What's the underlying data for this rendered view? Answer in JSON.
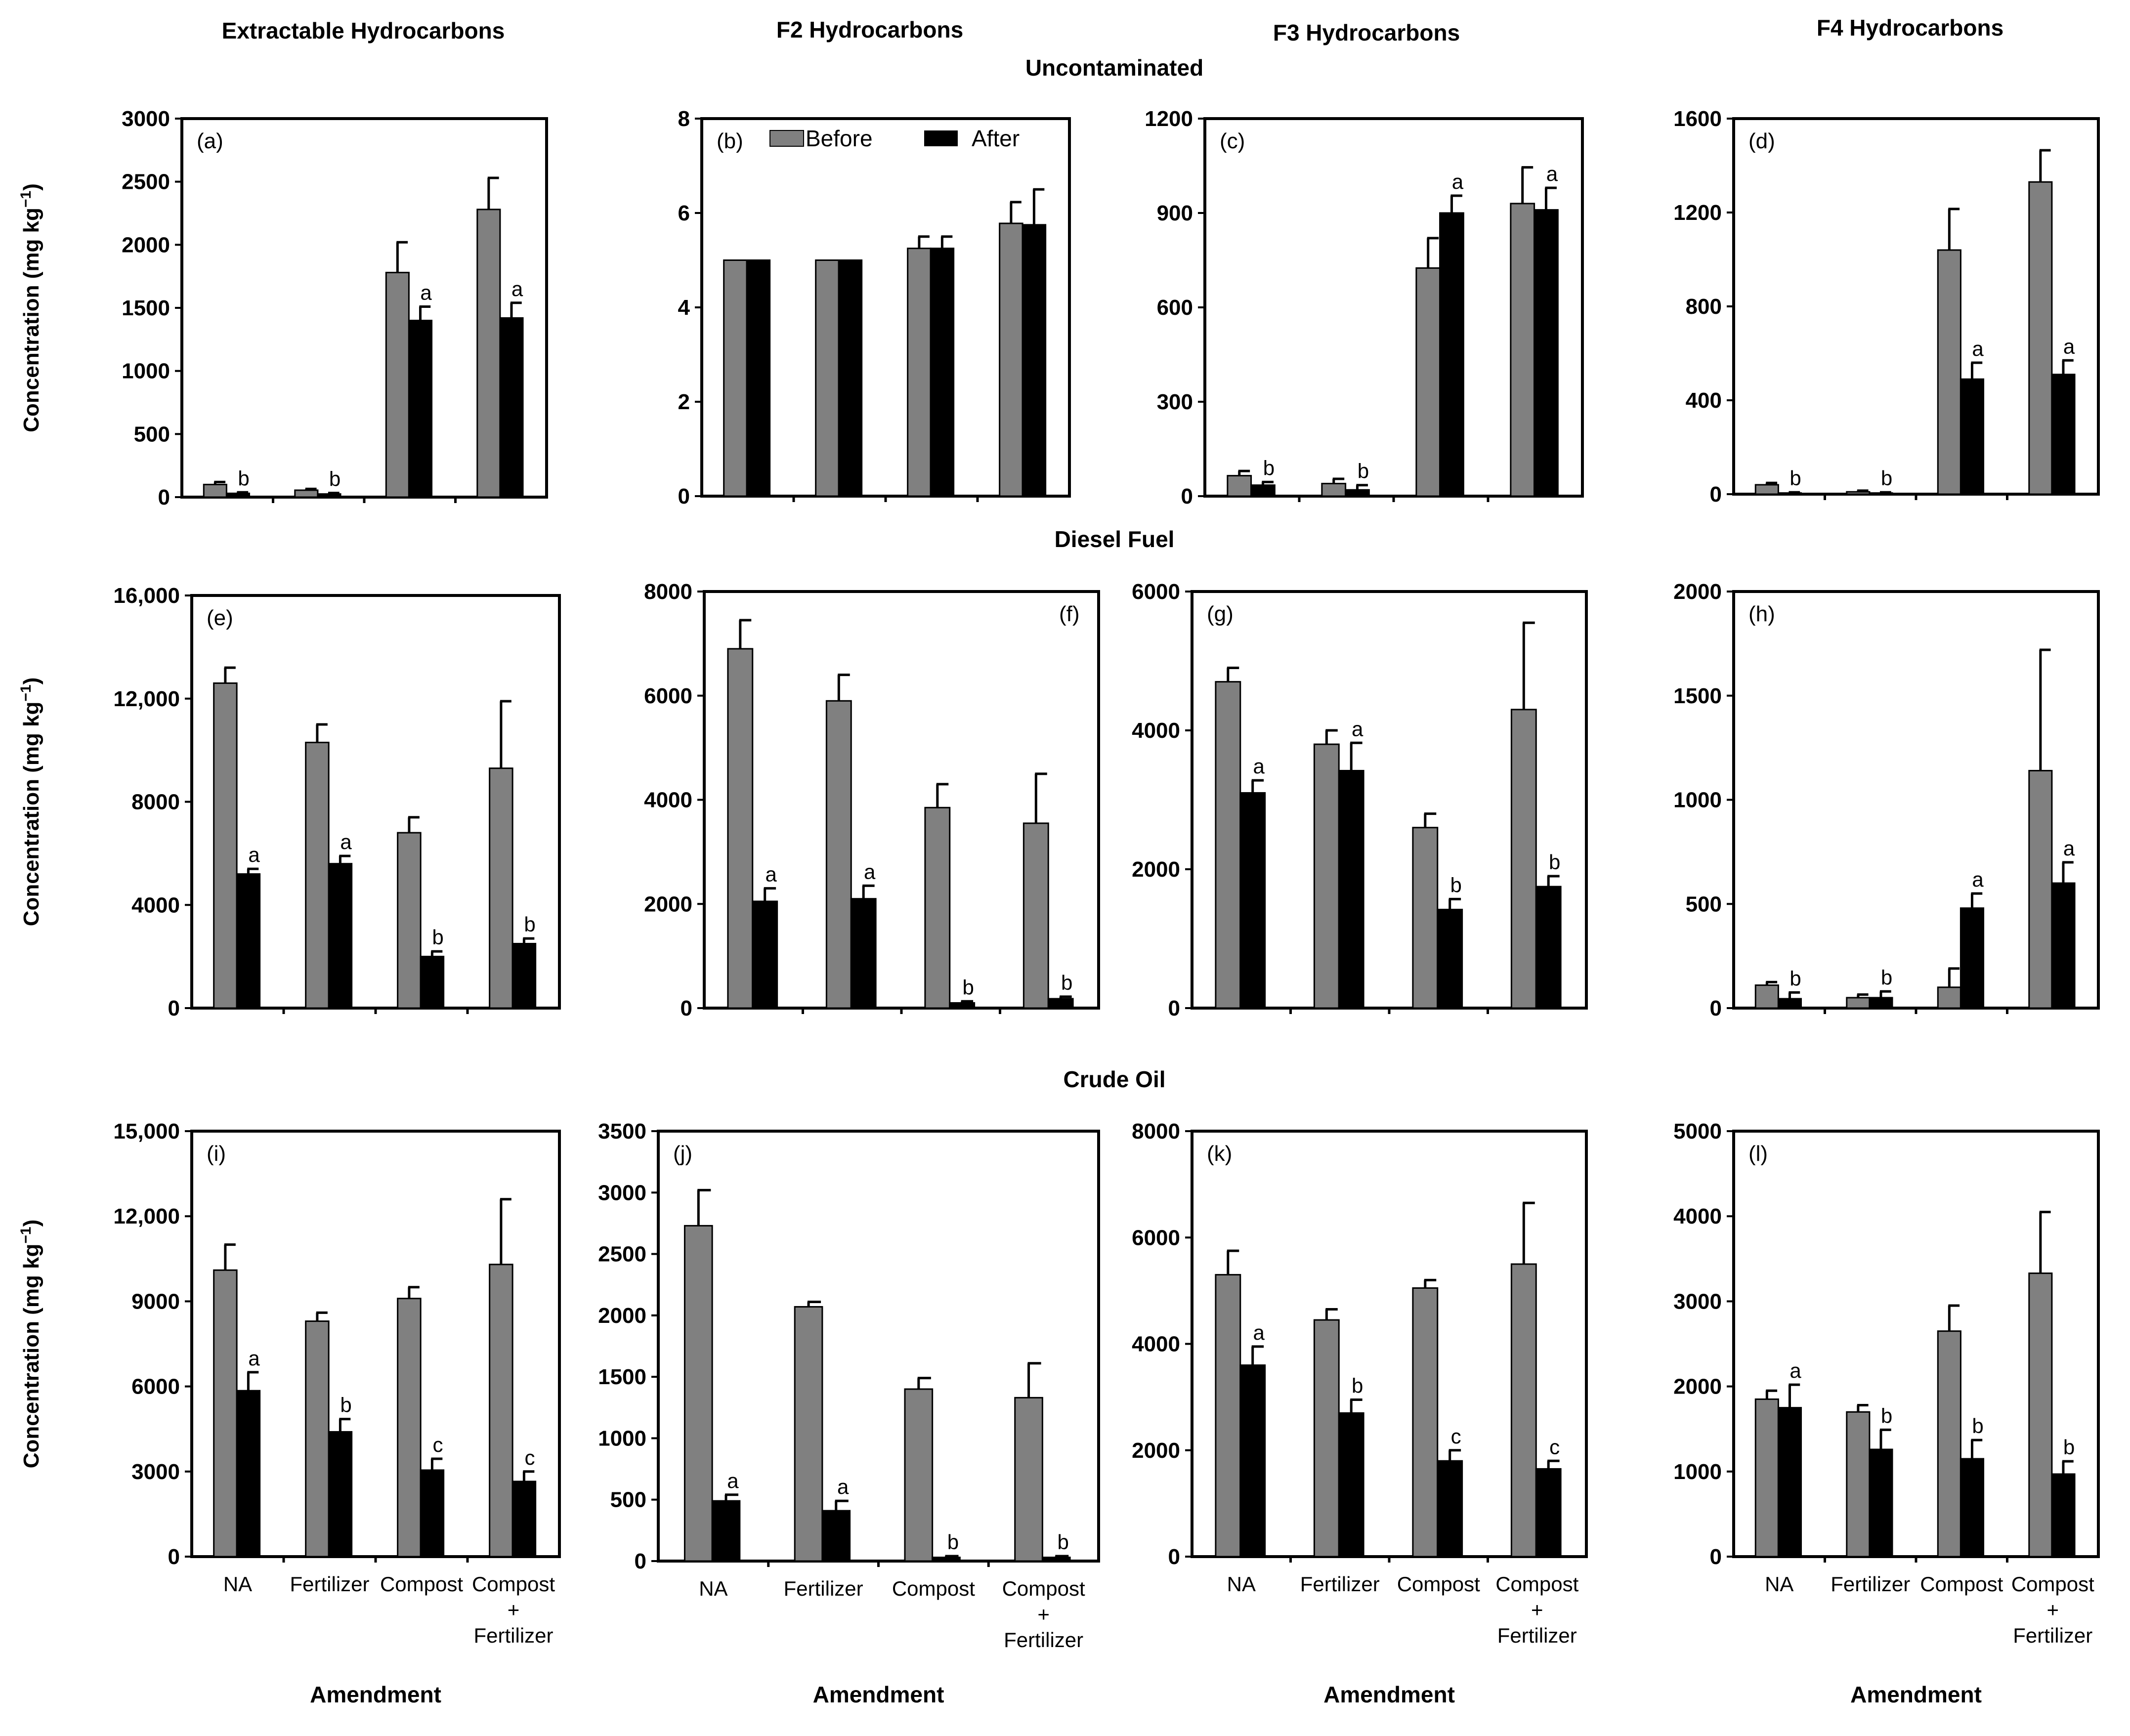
{
  "figure": {
    "column_titles": [
      "Extractable Hydrocarbons",
      "F2 Hydrocarbons",
      "F3 Hydrocarbons",
      "F4 Hydrocarbons"
    ],
    "row_titles": [
      "Uncontaminated",
      "Diesel Fuel",
      "Crude Oil"
    ],
    "ylabel": "Concentration (mg kg",
    "ylabel_sup": "−1",
    "ylabel_end": ")",
    "xlabel": "Amendment",
    "categories": [
      "NA",
      "Fertilizer",
      "Compost",
      "Compost + Fertilizer"
    ],
    "category_lines": [
      [
        "NA"
      ],
      [
        "Fertilizer"
      ],
      [
        "Compost"
      ],
      [
        "Compost",
        "+",
        "Fertilizer"
      ]
    ],
    "legend": [
      {
        "name": "Before",
        "color": "#808080"
      },
      {
        "name": "After",
        "color": "#000000"
      }
    ]
  },
  "chart_data": [
    {
      "type": "bar",
      "panel": "(a)",
      "row": "Uncontaminated",
      "column": "Extractable Hydrocarbons",
      "yticks": [
        "0",
        "500",
        "1000",
        "1500",
        "2000",
        "2500",
        "3000"
      ],
      "ylim": [
        0,
        3000
      ],
      "categories": [
        "NA",
        "Fertilizer",
        "Compost",
        "Compost + Fertilizer"
      ],
      "series": [
        {
          "name": "Before",
          "values": [
            100,
            55,
            1780,
            2280
          ],
          "errors": [
            20,
            10,
            240,
            250
          ]
        },
        {
          "name": "After",
          "values": [
            30,
            25,
            1400,
            1420
          ],
          "errors": [
            8,
            8,
            110,
            120
          ]
        }
      ],
      "annotations": [
        "b",
        "b",
        "a",
        "a"
      ]
    },
    {
      "type": "bar",
      "panel": "(b)",
      "row": "Uncontaminated",
      "column": "F2 Hydrocarbons",
      "yticks": [
        "0",
        "2",
        "4",
        "6",
        "8"
      ],
      "ylim": [
        0,
        8
      ],
      "categories": [
        "NA",
        "Fertilizer",
        "Compost",
        "Compost + Fertilizer"
      ],
      "series": [
        {
          "name": "Before",
          "values": [
            5.0,
            5.0,
            5.25,
            5.78
          ],
          "errors": [
            0,
            0,
            0.25,
            0.45
          ]
        },
        {
          "name": "After",
          "values": [
            5.0,
            5.0,
            5.25,
            5.75
          ],
          "errors": [
            0,
            0,
            0.25,
            0.75
          ]
        }
      ],
      "annotations": [
        "",
        "",
        "",
        ""
      ]
    },
    {
      "type": "bar",
      "panel": "(c)",
      "row": "Uncontaminated",
      "column": "F3 Hydrocarbons",
      "yticks": [
        "0",
        "300",
        "600",
        "900",
        "1200"
      ],
      "ylim": [
        0,
        1200
      ],
      "categories": [
        "NA",
        "Fertilizer",
        "Compost",
        "Compost + Fertilizer"
      ],
      "series": [
        {
          "name": "Before",
          "values": [
            65,
            40,
            725,
            930
          ],
          "errors": [
            15,
            15,
            95,
            115
          ]
        },
        {
          "name": "After",
          "values": [
            35,
            20,
            900,
            910
          ],
          "errors": [
            10,
            15,
            55,
            70
          ]
        }
      ],
      "annotations": [
        "b",
        "b",
        "a",
        "a"
      ]
    },
    {
      "type": "bar",
      "panel": "(d)",
      "row": "Uncontaminated",
      "column": "F4 Hydrocarbons",
      "yticks": [
        "0",
        "400",
        "800",
        "1200",
        "1600"
      ],
      "ylim": [
        0,
        1600
      ],
      "categories": [
        "NA",
        "Fertilizer",
        "Compost",
        "Compost + Fertilizer"
      ],
      "series": [
        {
          "name": "Before",
          "values": [
            40,
            10,
            1040,
            1330
          ],
          "errors": [
            8,
            5,
            175,
            135
          ]
        },
        {
          "name": "After",
          "values": [
            5,
            5,
            490,
            510
          ],
          "errors": [
            3,
            3,
            70,
            60
          ]
        }
      ],
      "annotations": [
        "b",
        "b",
        "a",
        "a"
      ]
    },
    {
      "type": "bar",
      "panel": "(e)",
      "row": "Diesel Fuel",
      "column": "Extractable Hydrocarbons",
      "yticks": [
        "0",
        "4000",
        "8000",
        "12,000",
        "16,000"
      ],
      "ylim": [
        0,
        16000
      ],
      "categories": [
        "NA",
        "Fertilizer",
        "Compost",
        "Compost + Fertilizer"
      ],
      "series": [
        {
          "name": "Before",
          "values": [
            12600,
            10300,
            6800,
            9300
          ],
          "errors": [
            600,
            700,
            600,
            2600
          ]
        },
        {
          "name": "After",
          "values": [
            5200,
            5600,
            2000,
            2500
          ],
          "errors": [
            200,
            300,
            200,
            200
          ]
        }
      ],
      "annotations": [
        "a",
        "a",
        "b",
        "b"
      ]
    },
    {
      "type": "bar",
      "panel": "(f)",
      "row": "Diesel Fuel",
      "column": "F2 Hydrocarbons",
      "yticks": [
        "0",
        "2000",
        "4000",
        "6000",
        "8000"
      ],
      "ylim": [
        0,
        8000
      ],
      "categories": [
        "NA",
        "Fertilizer",
        "Compost",
        "Compost + Fertilizer"
      ],
      "series": [
        {
          "name": "Before",
          "values": [
            6900,
            5900,
            3850,
            3550
          ],
          "errors": [
            550,
            500,
            450,
            950
          ]
        },
        {
          "name": "After",
          "values": [
            2050,
            2100,
            100,
            180
          ],
          "errors": [
            250,
            250,
            30,
            40
          ]
        }
      ],
      "annotations": [
        "a",
        "a",
        "b",
        "b"
      ]
    },
    {
      "type": "bar",
      "panel": "(g)",
      "row": "Diesel Fuel",
      "column": "F3 Hydrocarbons",
      "yticks": [
        "0",
        "2000",
        "4000",
        "6000"
      ],
      "ylim": [
        0,
        6000
      ],
      "categories": [
        "NA",
        "Fertilizer",
        "Compost",
        "Compost + Fertilizer"
      ],
      "series": [
        {
          "name": "Before",
          "values": [
            4700,
            3800,
            2600,
            4300
          ],
          "errors": [
            200,
            200,
            200,
            1250
          ]
        },
        {
          "name": "After",
          "values": [
            3100,
            3420,
            1420,
            1750
          ],
          "errors": [
            180,
            400,
            150,
            150
          ]
        }
      ],
      "annotations": [
        "a",
        "a",
        "b",
        "b"
      ]
    },
    {
      "type": "bar",
      "panel": "(h)",
      "row": "Diesel Fuel",
      "column": "F4 Hydrocarbons",
      "yticks": [
        "0",
        "500",
        "1000",
        "1500",
        "2000"
      ],
      "ylim": [
        0,
        2000
      ],
      "categories": [
        "NA",
        "Fertilizer",
        "Compost",
        "Compost + Fertilizer"
      ],
      "series": [
        {
          "name": "Before",
          "values": [
            110,
            50,
            100,
            1140
          ],
          "errors": [
            15,
            15,
            90,
            580
          ]
        },
        {
          "name": "After",
          "values": [
            45,
            50,
            480,
            600
          ],
          "errors": [
            30,
            30,
            70,
            100
          ]
        }
      ],
      "annotations": [
        "b",
        "b",
        "a",
        "a"
      ]
    },
    {
      "type": "bar",
      "panel": "(i)",
      "row": "Crude Oil",
      "column": "Extractable Hydrocarbons",
      "yticks": [
        "0",
        "3000",
        "6000",
        "9000",
        "12,000",
        "15,000"
      ],
      "ylim": [
        0,
        15000
      ],
      "categories": [
        "NA",
        "Fertilizer",
        "Compost",
        "Compost + Fertilizer"
      ],
      "series": [
        {
          "name": "Before",
          "values": [
            10100,
            8300,
            9100,
            10300
          ],
          "errors": [
            900,
            300,
            400,
            2300
          ]
        },
        {
          "name": "After",
          "values": [
            5850,
            4400,
            3050,
            2650
          ],
          "errors": [
            650,
            450,
            400,
            350
          ]
        }
      ],
      "annotations": [
        "a",
        "b",
        "c",
        "c"
      ]
    },
    {
      "type": "bar",
      "panel": "(j)",
      "row": "Crude Oil",
      "column": "F2 Hydrocarbons",
      "yticks": [
        "0",
        "500",
        "1000",
        "1500",
        "2000",
        "2500",
        "3000",
        "3500"
      ],
      "ylim": [
        0,
        3500
      ],
      "categories": [
        "NA",
        "Fertilizer",
        "Compost",
        "Compost + Fertilizer"
      ],
      "series": [
        {
          "name": "Before",
          "values": [
            2730,
            2070,
            1400,
            1330
          ],
          "errors": [
            290,
            40,
            90,
            280
          ]
        },
        {
          "name": "After",
          "values": [
            490,
            410,
            30,
            30
          ],
          "errors": [
            50,
            80,
            10,
            10
          ]
        }
      ],
      "annotations": [
        "a",
        "a",
        "b",
        "b"
      ]
    },
    {
      "type": "bar",
      "panel": "(k)",
      "row": "Crude Oil",
      "column": "F3 Hydrocarbons",
      "yticks": [
        "0",
        "2000",
        "4000",
        "6000",
        "8000"
      ],
      "ylim": [
        0,
        8000
      ],
      "categories": [
        "NA",
        "Fertilizer",
        "Compost",
        "Compost + Fertilizer"
      ],
      "series": [
        {
          "name": "Before",
          "values": [
            5300,
            4450,
            5050,
            5500
          ],
          "errors": [
            450,
            200,
            150,
            1150
          ]
        },
        {
          "name": "After",
          "values": [
            3600,
            2700,
            1800,
            1650
          ],
          "errors": [
            350,
            250,
            200,
            150
          ]
        }
      ],
      "annotations": [
        "a",
        "b",
        "c",
        "c"
      ]
    },
    {
      "type": "bar",
      "panel": "(l)",
      "row": "Crude Oil",
      "column": "F4 Hydrocarbons",
      "yticks": [
        "0",
        "1000",
        "2000",
        "3000",
        "4000",
        "5000"
      ],
      "ylim": [
        0,
        5000
      ],
      "categories": [
        "NA",
        "Fertilizer",
        "Compost",
        "Compost + Fertilizer"
      ],
      "series": [
        {
          "name": "Before",
          "values": [
            1850,
            1700,
            2650,
            3330
          ],
          "errors": [
            100,
            80,
            300,
            720
          ]
        },
        {
          "name": "After",
          "values": [
            1750,
            1260,
            1150,
            970
          ],
          "errors": [
            270,
            230,
            220,
            150
          ]
        }
      ],
      "annotations": [
        "a",
        "b",
        "b",
        "b"
      ]
    }
  ]
}
